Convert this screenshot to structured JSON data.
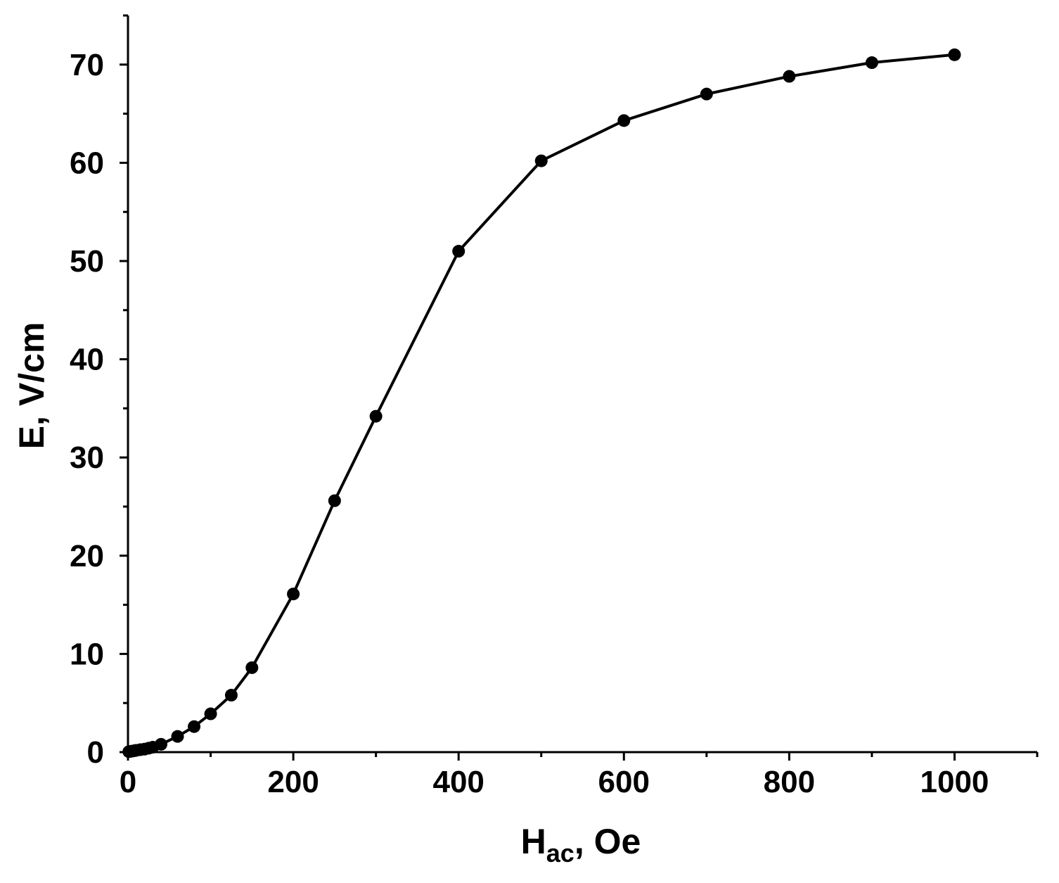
{
  "chart_data": {
    "type": "line",
    "title": "",
    "xlabel": {
      "main": "H",
      "sub": "ac",
      "suffix": ", Oe"
    },
    "ylabel": "E, V/cm",
    "xlim": [
      0,
      1100
    ],
    "ylim": [
      0,
      75
    ],
    "x_ticks": [
      "0",
      "200",
      "400",
      "600",
      "800",
      "1000"
    ],
    "y_ticks": [
      "0",
      "10",
      "20",
      "30",
      "40",
      "50",
      "60",
      "70"
    ],
    "grid": false,
    "legend": "none",
    "series": [
      {
        "color": "#000000",
        "marker": "filled-circle",
        "x": [
          1,
          3,
          5,
          8,
          10,
          15,
          20,
          25,
          30,
          40,
          60,
          80,
          100,
          125,
          150,
          200,
          250,
          300,
          400,
          500,
          600,
          700,
          800,
          900,
          1000
        ],
        "y": [
          0.05,
          0.08,
          0.1,
          0.15,
          0.18,
          0.25,
          0.3,
          0.4,
          0.5,
          0.8,
          1.6,
          2.6,
          3.9,
          5.8,
          8.6,
          16.1,
          25.6,
          34.2,
          51.0,
          60.2,
          64.3,
          67.0,
          68.8,
          70.2,
          71.0
        ]
      }
    ]
  }
}
